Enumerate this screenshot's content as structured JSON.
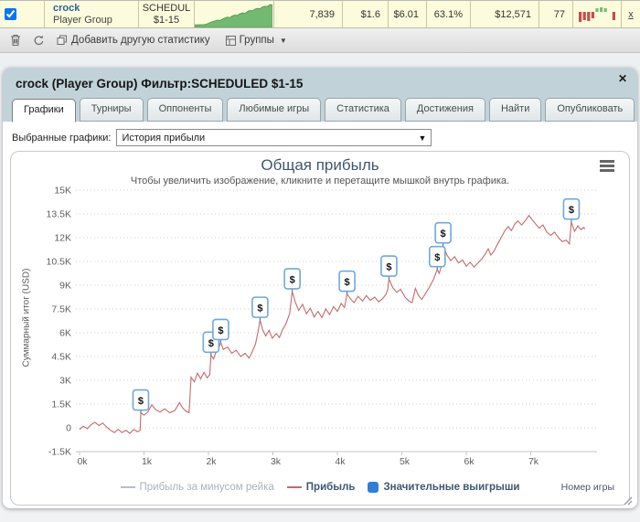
{
  "summary_row": {
    "name": "crock",
    "type": "Player Group",
    "filter_line1": "SCHEDUL",
    "filter_line2": "$1-15",
    "stats": [
      "7,839",
      "$1.6",
      "$6.01",
      "63.1%",
      "$12,571",
      "77"
    ],
    "close_label": "x",
    "sparkline": [
      3,
      3,
      4,
      4,
      5,
      8,
      14,
      18,
      22,
      26,
      24,
      30,
      36,
      40,
      38,
      46,
      50,
      48,
      56,
      60,
      58,
      66,
      72,
      70,
      78,
      82,
      80,
      88,
      92,
      90,
      100,
      98
    ],
    "position_bars": [
      -11,
      -9,
      -10,
      -7,
      4,
      5,
      4,
      0,
      -9
    ],
    "spark_color": "#72ba72",
    "bar_pos_color": "#70c070",
    "bar_neg_color": "#c0504d"
  },
  "toolbar": {
    "add_stat": "Добавить другую статистику",
    "groups": "Группы",
    "caret": "▼"
  },
  "panel": {
    "title": "crock (Player Group) Фильтр:SCHEDULED $1-15",
    "close_icon": "✕",
    "tabs": [
      {
        "label": "Графики"
      },
      {
        "label": "Турниры"
      },
      {
        "label": "Оппоненты"
      },
      {
        "label": "Любимые игры"
      },
      {
        "label": "Статистика"
      },
      {
        "label": "Достижения"
      },
      {
        "label": "Найти"
      },
      {
        "label": "Опубликовать"
      }
    ],
    "graph_select_label": "Выбранные графики:",
    "graph_select_value": "История прибыли",
    "select_arrow": "▼"
  },
  "chart_data": {
    "type": "line",
    "title": "Общая прибыль",
    "subtitle": "Чтобы увеличить изображение, кликните и перетащите мышкой внутрь графика.",
    "xlabel": "Номер игры",
    "ylabel": "Суммарный итог (USD)",
    "xlim_thousands": [
      0,
      8.03
    ],
    "ylim_thousands": [
      -1.5,
      15
    ],
    "x_ticks": [
      {
        "v": 0,
        "label": "0k"
      },
      {
        "v": 1,
        "label": "1k"
      },
      {
        "v": 2,
        "label": "2k"
      },
      {
        "v": 3,
        "label": "3k"
      },
      {
        "v": 4,
        "label": "4k"
      },
      {
        "v": 5,
        "label": "5k"
      },
      {
        "v": 6,
        "label": "6k"
      },
      {
        "v": 7,
        "label": "7k"
      }
    ],
    "y_ticks": [
      {
        "v": -1.5,
        "label": "-1.5K"
      },
      {
        "v": 0,
        "label": "0"
      },
      {
        "v": 1.5,
        "label": "1.5K"
      },
      {
        "v": 3,
        "label": "3K"
      },
      {
        "v": 4.5,
        "label": "4.5K"
      },
      {
        "v": 6,
        "label": "6K"
      },
      {
        "v": 7.5,
        "label": "7.5K"
      },
      {
        "v": 9,
        "label": "9K"
      },
      {
        "v": 10.5,
        "label": "10.5K"
      },
      {
        "v": 12,
        "label": "12K"
      },
      {
        "v": 13.5,
        "label": "13.5K"
      },
      {
        "v": 15,
        "label": "15K"
      }
    ],
    "grid": "dotted-horizontal",
    "legend_position": "bottom-center",
    "series": [
      {
        "name": "Прибыль за минусом рейка",
        "color": "#b9bfc7",
        "visible": false,
        "points": []
      },
      {
        "name": "Прибыль",
        "color": "#c26b6b",
        "visible": true,
        "points": [
          [
            0,
            -0.1
          ],
          [
            0.06,
            0.1
          ],
          [
            0.12,
            -0.05
          ],
          [
            0.18,
            0.2
          ],
          [
            0.24,
            0.35
          ],
          [
            0.3,
            0.15
          ],
          [
            0.36,
            0.3
          ],
          [
            0.42,
            0.05
          ],
          [
            0.48,
            -0.15
          ],
          [
            0.54,
            -0.3
          ],
          [
            0.6,
            -0.1
          ],
          [
            0.66,
            -0.3
          ],
          [
            0.72,
            -0.15
          ],
          [
            0.78,
            -0.35
          ],
          [
            0.84,
            -0.1
          ],
          [
            0.9,
            -0.25
          ],
          [
            0.94,
            -0.15
          ],
          [
            0.95,
            0.95
          ],
          [
            1.0,
            0.8
          ],
          [
            1.06,
            1.0
          ],
          [
            1.12,
            1.45
          ],
          [
            1.18,
            1.15
          ],
          [
            1.25,
            1.0
          ],
          [
            1.32,
            1.2
          ],
          [
            1.4,
            0.95
          ],
          [
            1.48,
            1.1
          ],
          [
            1.55,
            1.6
          ],
          [
            1.6,
            1.25
          ],
          [
            1.65,
            1.05
          ],
          [
            1.7,
            0.95
          ],
          [
            1.73,
            3.2
          ],
          [
            1.78,
            2.9
          ],
          [
            1.83,
            3.45
          ],
          [
            1.88,
            3.1
          ],
          [
            1.93,
            3.5
          ],
          [
            1.98,
            3.15
          ],
          [
            2.02,
            3.35
          ],
          [
            2.04,
            4.6
          ],
          [
            2.08,
            4.35
          ],
          [
            2.13,
            4.95
          ],
          [
            2.17,
            5.15
          ],
          [
            2.19,
            5.4
          ],
          [
            2.23,
            4.95
          ],
          [
            2.3,
            5.1
          ],
          [
            2.36,
            4.7
          ],
          [
            2.43,
            4.9
          ],
          [
            2.5,
            4.5
          ],
          [
            2.57,
            4.7
          ],
          [
            2.63,
            4.4
          ],
          [
            2.68,
            4.8
          ],
          [
            2.73,
            5.3
          ],
          [
            2.77,
            6.1
          ],
          [
            2.8,
            6.8
          ],
          [
            2.84,
            6.2
          ],
          [
            2.89,
            5.8
          ],
          [
            2.94,
            6.15
          ],
          [
            2.99,
            5.65
          ],
          [
            3.05,
            5.95
          ],
          [
            3.1,
            5.7
          ],
          [
            3.15,
            6.2
          ],
          [
            3.2,
            6.55
          ],
          [
            3.26,
            7.2
          ],
          [
            3.3,
            8.6
          ],
          [
            3.35,
            7.9
          ],
          [
            3.4,
            7.4
          ],
          [
            3.46,
            7.8
          ],
          [
            3.52,
            7.2
          ],
          [
            3.58,
            7.55
          ],
          [
            3.64,
            7.0
          ],
          [
            3.7,
            7.35
          ],
          [
            3.76,
            6.95
          ],
          [
            3.82,
            7.5
          ],
          [
            3.88,
            7.15
          ],
          [
            3.94,
            7.65
          ],
          [
            4.0,
            7.35
          ],
          [
            4.06,
            7.85
          ],
          [
            4.11,
            7.6
          ],
          [
            4.15,
            8.45
          ],
          [
            4.2,
            8.15
          ],
          [
            4.26,
            7.9
          ],
          [
            4.32,
            8.3
          ],
          [
            4.39,
            8.0
          ],
          [
            4.45,
            8.35
          ],
          [
            4.51,
            8.05
          ],
          [
            4.58,
            8.25
          ],
          [
            4.64,
            7.95
          ],
          [
            4.7,
            8.15
          ],
          [
            4.75,
            8.4
          ],
          [
            4.78,
            8.7
          ],
          [
            4.8,
            9.4
          ],
          [
            4.86,
            8.85
          ],
          [
            4.92,
            8.55
          ],
          [
            4.98,
            8.75
          ],
          [
            5.05,
            8.25
          ],
          [
            5.11,
            8.0
          ],
          [
            5.16,
            7.9
          ],
          [
            5.21,
            8.8
          ],
          [
            5.26,
            8.35
          ],
          [
            5.31,
            8.1
          ],
          [
            5.37,
            8.5
          ],
          [
            5.43,
            8.9
          ],
          [
            5.49,
            9.35
          ],
          [
            5.52,
            9.7
          ],
          [
            5.55,
            10.0
          ],
          [
            5.58,
            9.75
          ],
          [
            5.62,
            10.3
          ],
          [
            5.64,
            11.5
          ],
          [
            5.7,
            10.9
          ],
          [
            5.76,
            10.55
          ],
          [
            5.82,
            10.8
          ],
          [
            5.88,
            10.4
          ],
          [
            5.94,
            10.6
          ],
          [
            6.0,
            10.2
          ],
          [
            6.06,
            10.45
          ],
          [
            6.12,
            10.15
          ],
          [
            6.18,
            10.4
          ],
          [
            6.24,
            10.65
          ],
          [
            6.3,
            11.0
          ],
          [
            6.34,
            11.3
          ],
          [
            6.38,
            10.9
          ],
          [
            6.43,
            11.15
          ],
          [
            6.48,
            11.55
          ],
          [
            6.54,
            12.0
          ],
          [
            6.6,
            12.45
          ],
          [
            6.65,
            12.7
          ],
          [
            6.7,
            12.45
          ],
          [
            6.75,
            12.85
          ],
          [
            6.8,
            13.05
          ],
          [
            6.86,
            12.8
          ],
          [
            6.92,
            13.1
          ],
          [
            6.97,
            13.4
          ],
          [
            7.02,
            13.15
          ],
          [
            7.08,
            12.85
          ],
          [
            7.13,
            12.6
          ],
          [
            7.19,
            12.8
          ],
          [
            7.25,
            12.35
          ],
          [
            7.31,
            12.15
          ],
          [
            7.37,
            12.35
          ],
          [
            7.43,
            12.0
          ],
          [
            7.49,
            11.75
          ],
          [
            7.55,
            11.85
          ],
          [
            7.6,
            11.6
          ],
          [
            7.63,
            13.0
          ],
          [
            7.68,
            12.4
          ],
          [
            7.73,
            12.75
          ],
          [
            7.78,
            12.5
          ],
          [
            7.82,
            12.65
          ],
          [
            7.84,
            12.55
          ]
        ]
      },
      {
        "name": "Значительные выигрыши",
        "color": "#2F7ED8",
        "visible": true,
        "marker": "dollar-flag",
        "points": [
          [
            0.95,
            0.95
          ],
          [
            2.04,
            4.6
          ],
          [
            2.19,
            5.4
          ],
          [
            2.8,
            6.8
          ],
          [
            3.3,
            8.6
          ],
          [
            4.15,
            8.45
          ],
          [
            4.8,
            9.4
          ],
          [
            5.55,
            10.0
          ],
          [
            5.64,
            11.5
          ],
          [
            7.63,
            13.0
          ]
        ]
      }
    ],
    "flag_symbol": "$",
    "colors": {
      "grid": "#cfcfcf",
      "axis": "#c6c6c6",
      "tick_label": "#5e5e5e",
      "title": "#3E576F"
    }
  }
}
